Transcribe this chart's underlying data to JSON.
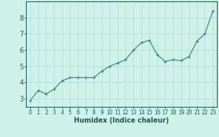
{
  "x": [
    0,
    1,
    2,
    3,
    4,
    5,
    6,
    7,
    8,
    9,
    10,
    11,
    12,
    13,
    14,
    15,
    16,
    17,
    18,
    19,
    20,
    21,
    22,
    23
  ],
  "y": [
    2.9,
    3.5,
    3.3,
    3.6,
    4.1,
    4.3,
    4.3,
    4.3,
    4.3,
    4.7,
    5.0,
    5.2,
    5.4,
    6.0,
    6.45,
    6.6,
    5.7,
    5.3,
    5.4,
    5.35,
    5.6,
    6.55,
    7.0,
    8.4
  ],
  "line_color": "#2e8b7a",
  "marker": "+",
  "marker_size": 3,
  "xlabel": "Humidex (Indice chaleur)",
  "xlim": [
    -0.5,
    23.5
  ],
  "ylim": [
    2.5,
    9.0
  ],
  "yticks": [
    3,
    4,
    5,
    6,
    7,
    8
  ],
  "xticks": [
    0,
    1,
    2,
    3,
    4,
    5,
    6,
    7,
    8,
    9,
    10,
    11,
    12,
    13,
    14,
    15,
    16,
    17,
    18,
    19,
    20,
    21,
    22,
    23
  ],
  "background_color": "#cff0eb",
  "grid_color": "#aad8d0",
  "label_color": "#1a5c52",
  "xlabel_fontsize": 7,
  "ytick_fontsize": 7,
  "xtick_fontsize": 5.5,
  "line_width": 0.9,
  "marker_edge_width": 0.9
}
